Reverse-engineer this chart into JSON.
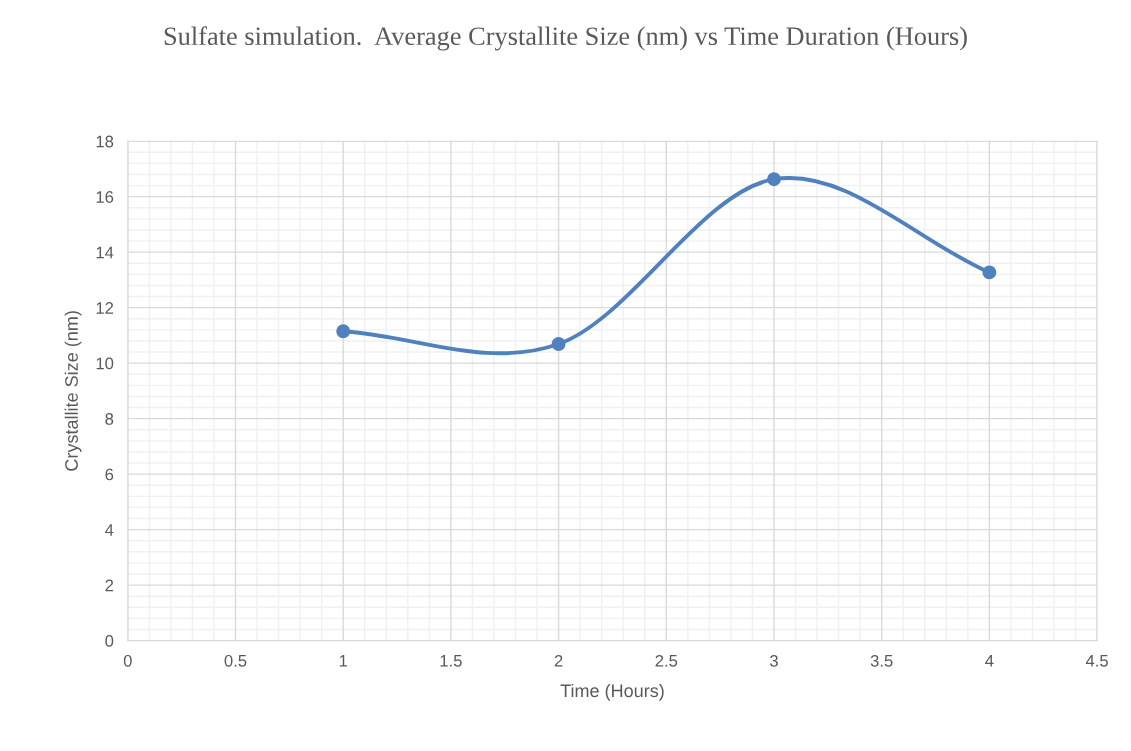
{
  "chart_data": {
    "type": "line",
    "title": "Sulfate simulation.  Average Crystallite Size (nm) vs Time Duration (Hours)",
    "xlabel": "Time (Hours)",
    "ylabel": "Crystallite Size (nm)",
    "x": [
      1,
      2,
      3,
      4
    ],
    "series": [
      {
        "color": "#4f81bd",
        "values": [
          11.15,
          10.69,
          16.63,
          13.27
        ]
      }
    ],
    "xlim": [
      0,
      4.5
    ],
    "xticks": [
      0,
      0.5,
      1,
      1.5,
      2,
      2.5,
      3,
      3.5,
      4,
      4.5
    ],
    "ylim": [
      0,
      18
    ],
    "yticks": [
      0,
      2,
      4,
      6,
      8,
      10,
      12,
      14,
      16,
      18
    ],
    "grid": true,
    "marker": "circle",
    "line_style": "solid"
  }
}
